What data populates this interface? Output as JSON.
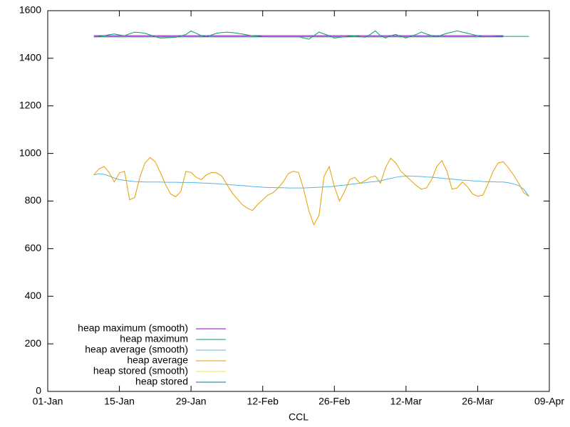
{
  "chart_data": {
    "type": "line",
    "xlabel": "CCL",
    "xlim": [
      0,
      98
    ],
    "xticks": [
      {
        "value": 0,
        "label": "01-Jan"
      },
      {
        "value": 14,
        "label": "15-Jan"
      },
      {
        "value": 28,
        "label": "29-Jan"
      },
      {
        "value": 42,
        "label": "12-Feb"
      },
      {
        "value": 56,
        "label": "26-Feb"
      },
      {
        "value": 70,
        "label": "12-Mar"
      },
      {
        "value": 84,
        "label": "26-Mar"
      },
      {
        "value": 98,
        "label": "09-Apr"
      }
    ],
    "ylim": [
      0,
      1600
    ],
    "yticks": [
      0,
      200,
      400,
      600,
      800,
      1000,
      1200,
      1400,
      1600
    ],
    "grid": false,
    "legend": "bottom left",
    "x": [
      9,
      10,
      11,
      12,
      13,
      14,
      15,
      16,
      17,
      18,
      19,
      20,
      21,
      22,
      23,
      24,
      25,
      26,
      27,
      28,
      29,
      30,
      31,
      32,
      33,
      34,
      35,
      36,
      37,
      38,
      39,
      40,
      41,
      42,
      43,
      44,
      45,
      46,
      47,
      48,
      49,
      50,
      51,
      52,
      53,
      54,
      55,
      56,
      57,
      58,
      59,
      60,
      61,
      62,
      63,
      64,
      65,
      66,
      67,
      68,
      69,
      70,
      71,
      72,
      73,
      74,
      75,
      76,
      77,
      78,
      79,
      80,
      81,
      82,
      83,
      84,
      85,
      86,
      87,
      88,
      89,
      90,
      91,
      92,
      93,
      94
    ],
    "series": [
      {
        "name": "heap maximum (smooth)",
        "color": "#9400d3",
        "values": [
          1495,
          1495,
          1495,
          1495,
          1495,
          1495,
          1495,
          1495,
          1495,
          1495,
          1495,
          1495,
          1495,
          1495,
          1495,
          1495,
          1495,
          1495,
          1495,
          1495,
          1495,
          1495,
          1495,
          1495,
          1495,
          1495,
          1495,
          1495,
          1495,
          1495,
          1495,
          1495,
          1495,
          1495,
          1495,
          1495,
          1495,
          1495,
          1495,
          1495,
          1495,
          1495,
          1495,
          1495,
          1495,
          1495,
          1495,
          1495,
          1495,
          1495,
          1495,
          1495,
          1495,
          1495,
          1495,
          1495,
          1495,
          1495,
          1495,
          1495,
          1495,
          1495,
          1495,
          1495,
          1495,
          1495,
          1495,
          1495,
          1495,
          1495,
          1495,
          1495,
          1495,
          1495,
          1495,
          1495,
          1495,
          1495,
          1495,
          1495,
          1495,
          null,
          null,
          null,
          null,
          null
        ]
      },
      {
        "name": "heap maximum",
        "color": "#009e73",
        "values": [
          1490,
          1492,
          1495,
          1499,
          1502,
          1498,
          1495,
          1503,
          1510,
          1508,
          1505,
          1498,
          1490,
          1485,
          1486,
          1487,
          1488,
          1494,
          1500,
          1515,
          1505,
          1495,
          1490,
          1498,
          1505,
          1508,
          1510,
          1508,
          1505,
          1502,
          1498,
          1495,
          1493,
          1491,
          1490,
          1490,
          1490,
          1490,
          1490,
          1490,
          1490,
          1485,
          1480,
          1495,
          1510,
          1502,
          1495,
          1485,
          1488,
          1490,
          1493,
          1495,
          1491,
          1488,
          1500,
          1515,
          1495,
          1485,
          1495,
          1500,
          1492,
          1485,
          1493,
          1500,
          1510,
          1502,
          1495,
          1490,
          1498,
          1505,
          1510,
          1515,
          1510,
          1505,
          1500,
          1495,
          1490,
          1491,
          1491,
          1492,
          1492,
          1492,
          1492,
          1492,
          1492,
          1492
        ]
      },
      {
        "name": "heap average (smooth)",
        "color": "#56b4e9",
        "values": [
          910,
          915,
          912,
          905,
          897,
          890,
          887,
          884,
          882,
          881,
          880,
          880,
          880,
          880,
          879,
          879,
          879,
          878,
          878,
          878,
          877,
          876,
          875,
          874,
          873,
          871,
          870,
          868,
          866,
          865,
          863,
          861,
          860,
          858,
          857,
          857,
          856,
          856,
          855,
          855,
          855,
          855,
          856,
          857,
          858,
          859,
          860,
          862,
          865,
          867,
          870,
          872,
          875,
          877,
          880,
          882,
          885,
          890,
          895,
          900,
          903,
          905,
          905,
          904,
          903,
          901,
          900,
          898,
          896,
          894,
          892,
          890,
          888,
          887,
          885,
          884,
          882,
          881,
          881,
          880,
          880,
          877,
          872,
          865,
          850,
          820
        ]
      },
      {
        "name": "heap average",
        "color": "#e69f00",
        "values": [
          910,
          935,
          945,
          920,
          880,
          918,
          925,
          805,
          815,
          900,
          960,
          983,
          965,
          920,
          870,
          830,
          818,
          840,
          925,
          920,
          900,
          890,
          910,
          920,
          918,
          905,
          870,
          835,
          810,
          785,
          770,
          760,
          785,
          805,
          825,
          835,
          855,
          880,
          915,
          925,
          920,
          850,
          760,
          700,
          740,
          905,
          945,
          860,
          800,
          840,
          890,
          900,
          875,
          885,
          900,
          905,
          875,
          940,
          980,
          960,
          925,
          905,
          885,
          865,
          850,
          855,
          890,
          945,
          970,
          925,
          850,
          855,
          880,
          860,
          830,
          820,
          825,
          870,
          925,
          960,
          965,
          940,
          910,
          875,
          835,
          820
        ]
      },
      {
        "name": "heap stored (smooth)",
        "color": "#f0e442",
        "values": [
          1490,
          1490,
          1490,
          1490,
          1490,
          1490,
          1490,
          1490,
          1490,
          1490,
          1490,
          1490,
          1490,
          1490,
          1490,
          1490,
          1490,
          1490,
          1490,
          1490,
          1490,
          1490,
          1490,
          1490,
          1490,
          1490,
          1490,
          1490,
          1490,
          1490,
          1490,
          1490,
          1490,
          1490,
          1490,
          1490,
          1490,
          1490,
          1490,
          1490,
          1490,
          1490,
          1490,
          1490,
          1490,
          1490,
          1490,
          1490,
          1490,
          1490,
          1490,
          1490,
          1490,
          1490,
          1490,
          1490,
          1490,
          1490,
          1490,
          1490,
          1490,
          1490,
          1490,
          1490,
          1490,
          1490,
          1490,
          1490,
          1490,
          1490,
          1490,
          1490,
          1490,
          1490,
          1490,
          1490,
          1490,
          1490,
          1490,
          1490,
          1490,
          null,
          null,
          null,
          null,
          null
        ]
      },
      {
        "name": "heap stored",
        "color": "#0072b2",
        "values": [
          1490,
          1490,
          1490,
          1490,
          1490,
          1490,
          1490,
          1490,
          1490,
          1490,
          1490,
          1490,
          1490,
          1490,
          1490,
          1490,
          1490,
          1490,
          1490,
          1490,
          1490,
          1490,
          1490,
          1490,
          1490,
          1490,
          1490,
          1490,
          1490,
          1490,
          1490,
          1490,
          1490,
          1490,
          1490,
          1490,
          1490,
          1490,
          1490,
          1490,
          1490,
          1490,
          1490,
          1490,
          1490,
          1490,
          1490,
          1490,
          1490,
          1490,
          1490,
          1490,
          1490,
          1490,
          1490,
          1490,
          1490,
          1490,
          1490,
          1490,
          1490,
          1490,
          1490,
          1490,
          1490,
          1490,
          1490,
          1490,
          1490,
          1490,
          1490,
          1490,
          1490,
          1490,
          1490,
          1490,
          1490,
          1490,
          1490,
          1490,
          1490,
          null,
          null,
          null,
          null,
          null
        ]
      }
    ]
  }
}
